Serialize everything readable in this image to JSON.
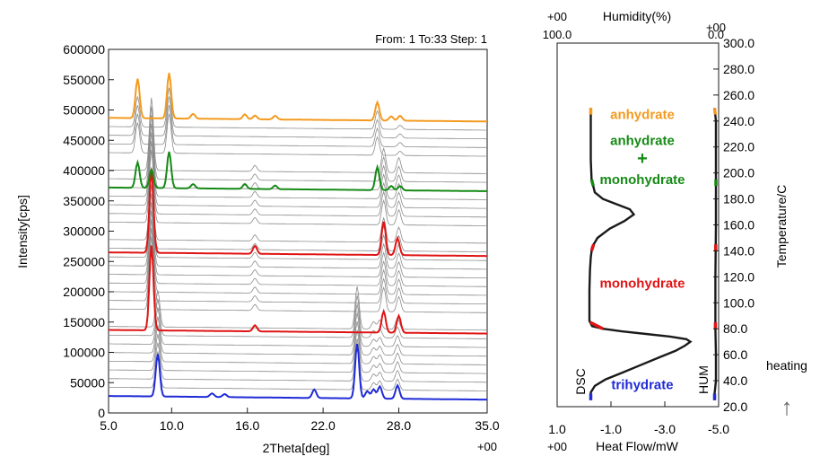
{
  "figure": {
    "right_note_text": "heating",
    "right_note_arrow": "↑"
  },
  "chart_data": [
    {
      "type": "line",
      "title": "",
      "header_text": "From: 1 To:33 Step: 1",
      "xlabel": "2Theta[deg]",
      "ylabel": "Intensity[cps]",
      "xlim": [
        5.0,
        35.0
      ],
      "ylim": [
        0,
        600000
      ],
      "x_ticks": [
        "5.0",
        "10.0",
        "16.0",
        "22.0",
        "28.0",
        "35.0"
      ],
      "x_tick_values": [
        5,
        10,
        16,
        22,
        28,
        35
      ],
      "x_suffix": "+00",
      "y_ticks": [
        "0",
        "50000",
        "100000",
        "150000",
        "200000",
        "250000",
        "300000",
        "350000",
        "400000",
        "450000",
        "500000",
        "550000",
        "600000"
      ],
      "y_tick_values": [
        0,
        50000,
        100000,
        150000,
        200000,
        250000,
        300000,
        350000,
        400000,
        450000,
        500000,
        550000,
        600000
      ],
      "grid": false,
      "scan_count": 33,
      "baseline_first": 28000,
      "baseline_last": 487000,
      "highlighted_series": [
        {
          "scan": 1,
          "color": "#1f2bd6",
          "baseline": 28000,
          "peaks": [
            [
              8.9,
              70000
            ],
            [
              13.2,
              6000
            ],
            [
              14.2,
              5000
            ],
            [
              21.3,
              14000
            ],
            [
              24.7,
              90000
            ],
            [
              25.5,
              12000
            ],
            [
              26.0,
              15000
            ],
            [
              26.5,
              20000
            ],
            [
              27.9,
              22000
            ]
          ]
        },
        {
          "scan": 10,
          "color": "#e01414",
          "baseline": 137000,
          "peaks": [
            [
              8.4,
              140000
            ],
            [
              16.6,
              10000
            ],
            [
              26.8,
              35000
            ],
            [
              28.0,
              28000
            ]
          ]
        },
        {
          "scan": 20,
          "color": "#e01414",
          "baseline": 265000,
          "peaks": [
            [
              8.4,
              138000
            ],
            [
              16.6,
              13000
            ],
            [
              26.8,
              55000
            ],
            [
              27.9,
              28000
            ]
          ]
        },
        {
          "scan": 28,
          "color": "#168a16",
          "baseline": 372000,
          "peaks": [
            [
              7.3,
              42000
            ],
            [
              8.4,
              30000
            ],
            [
              9.8,
              60000
            ],
            [
              11.7,
              7000
            ],
            [
              15.8,
              8000
            ],
            [
              18.2,
              6000
            ],
            [
              26.3,
              38000
            ],
            [
              27.4,
              7000
            ],
            [
              28.1,
              7000
            ]
          ]
        },
        {
          "scan": 33,
          "color": "#f39a1f",
          "baseline": 487000,
          "peaks": [
            [
              7.3,
              65000
            ],
            [
              9.8,
              75000
            ],
            [
              11.7,
              8000
            ],
            [
              15.8,
              8000
            ],
            [
              16.6,
              6000
            ],
            [
              18.2,
              6000
            ],
            [
              26.3,
              30000
            ],
            [
              27.4,
              7000
            ],
            [
              28.1,
              8000
            ]
          ]
        }
      ],
      "gray_peak_families": {
        "trihydrate": [
          [
            8.9,
            60000
          ],
          [
            24.7,
            70000
          ],
          [
            26.0,
            12000
          ],
          [
            26.5,
            15000
          ],
          [
            27.9,
            18000
          ]
        ],
        "monohydrate": [
          [
            8.4,
            120000
          ],
          [
            16.6,
            10000
          ],
          [
            26.8,
            40000
          ],
          [
            28.0,
            25000
          ]
        ],
        "anhydrate": [
          [
            7.3,
            50000
          ],
          [
            9.8,
            65000
          ],
          [
            26.3,
            30000
          ],
          [
            28.1,
            7000
          ]
        ]
      },
      "gray_color": "#8c8c8c"
    },
    {
      "type": "line",
      "title": "",
      "top_axis_label": "Humidity(%)",
      "top_left_tick": "100.0",
      "top_right_tick": "0.0",
      "top_left_suffix": "+00",
      "top_right_suffix": "+00",
      "xlabel": "Heat Flow/mW",
      "x_ticks": [
        "1.0",
        "-1.0",
        "-3.0",
        "-5.0"
      ],
      "x_tick_values": [
        1.0,
        -1.0,
        -3.0,
        -5.0
      ],
      "x_suffix": "+00",
      "xlim": [
        1.0,
        -5.0
      ],
      "ylabel": "Temperature/C",
      "ylim": [
        20.0,
        300.0
      ],
      "y_ticks": [
        "20.0",
        "40.0",
        "60.0",
        "80.0",
        "100.0",
        "120.0",
        "140.0",
        "160.0",
        "180.0",
        "200.0",
        "220.0",
        "240.0",
        "260.0",
        "280.0",
        "300.0"
      ],
      "y_tick_values": [
        20,
        40,
        60,
        80,
        100,
        120,
        140,
        160,
        180,
        200,
        220,
        240,
        260,
        280,
        300
      ],
      "grid": false,
      "series": [
        {
          "name": "DSC",
          "color": "#1a1a1a",
          "points": [
            [
              -0.25,
              25
            ],
            [
              -0.25,
              31
            ],
            [
              -0.4,
              36
            ],
            [
              -0.8,
              41
            ],
            [
              -1.4,
              46
            ],
            [
              -2.1,
              52
            ],
            [
              -2.8,
              58
            ],
            [
              -3.4,
              63
            ],
            [
              -3.75,
              67
            ],
            [
              -3.95,
              70
            ],
            [
              -3.8,
              72
            ],
            [
              -3.2,
              74
            ],
            [
              -2.3,
              76
            ],
            [
              -1.4,
              78
            ],
            [
              -0.7,
              80
            ],
            [
              -0.3,
              82
            ],
            [
              -0.2,
              86
            ],
            [
              -0.2,
              95
            ],
            [
              -0.2,
              110
            ],
            [
              -0.22,
              125
            ],
            [
              -0.25,
              135
            ],
            [
              -0.3,
              143
            ],
            [
              -0.5,
              150
            ],
            [
              -0.95,
              157
            ],
            [
              -1.5,
              163
            ],
            [
              -1.85,
              168
            ],
            [
              -1.7,
              172
            ],
            [
              -1.2,
              176
            ],
            [
              -0.7,
              180
            ],
            [
              -0.4,
              185
            ],
            [
              -0.28,
              195
            ],
            [
              -0.25,
              210
            ],
            [
              -0.25,
              230
            ],
            [
              -0.25,
              245
            ],
            [
              -0.25,
              250
            ]
          ]
        },
        {
          "name": "HUM",
          "color": "#1a1a1a",
          "points": [
            [
              -4.85,
              25
            ],
            [
              -4.85,
              30
            ],
            [
              -4.9,
              40
            ],
            [
              -4.9,
              60
            ],
            [
              -4.88,
              80
            ],
            [
              -4.88,
              120
            ],
            [
              -4.9,
              160
            ],
            [
              -4.9,
              200
            ],
            [
              -4.9,
              240
            ],
            [
              -4.85,
              250
            ]
          ]
        }
      ],
      "phase_segments": [
        {
          "color": "#1f2bd6",
          "from": 25,
          "to": 30
        },
        {
          "color": "#e01414",
          "from": 80,
          "to": 85
        },
        {
          "color": "#e01414",
          "from": 140,
          "to": 145
        },
        {
          "color": "#168a16",
          "from": 190,
          "to": 195
        },
        {
          "color": "#f39a1f",
          "from": 245,
          "to": 250
        }
      ],
      "annotations": [
        {
          "text": "anhydrate",
          "color": "#f39a1f",
          "temp": 245
        },
        {
          "text": "anhydrate",
          "color": "#168a16",
          "temp": 225
        },
        {
          "text": "+",
          "color": "#168a16",
          "temp": 210
        },
        {
          "text": "monohydrate",
          "color": "#168a16",
          "temp": 195
        },
        {
          "text": "monohydrate",
          "color": "#e01414",
          "temp": 115
        },
        {
          "text": "trihydrate",
          "color": "#1f2bd6",
          "temp": 37
        }
      ],
      "curve_labels": [
        "DSC",
        "HUM"
      ]
    }
  ]
}
